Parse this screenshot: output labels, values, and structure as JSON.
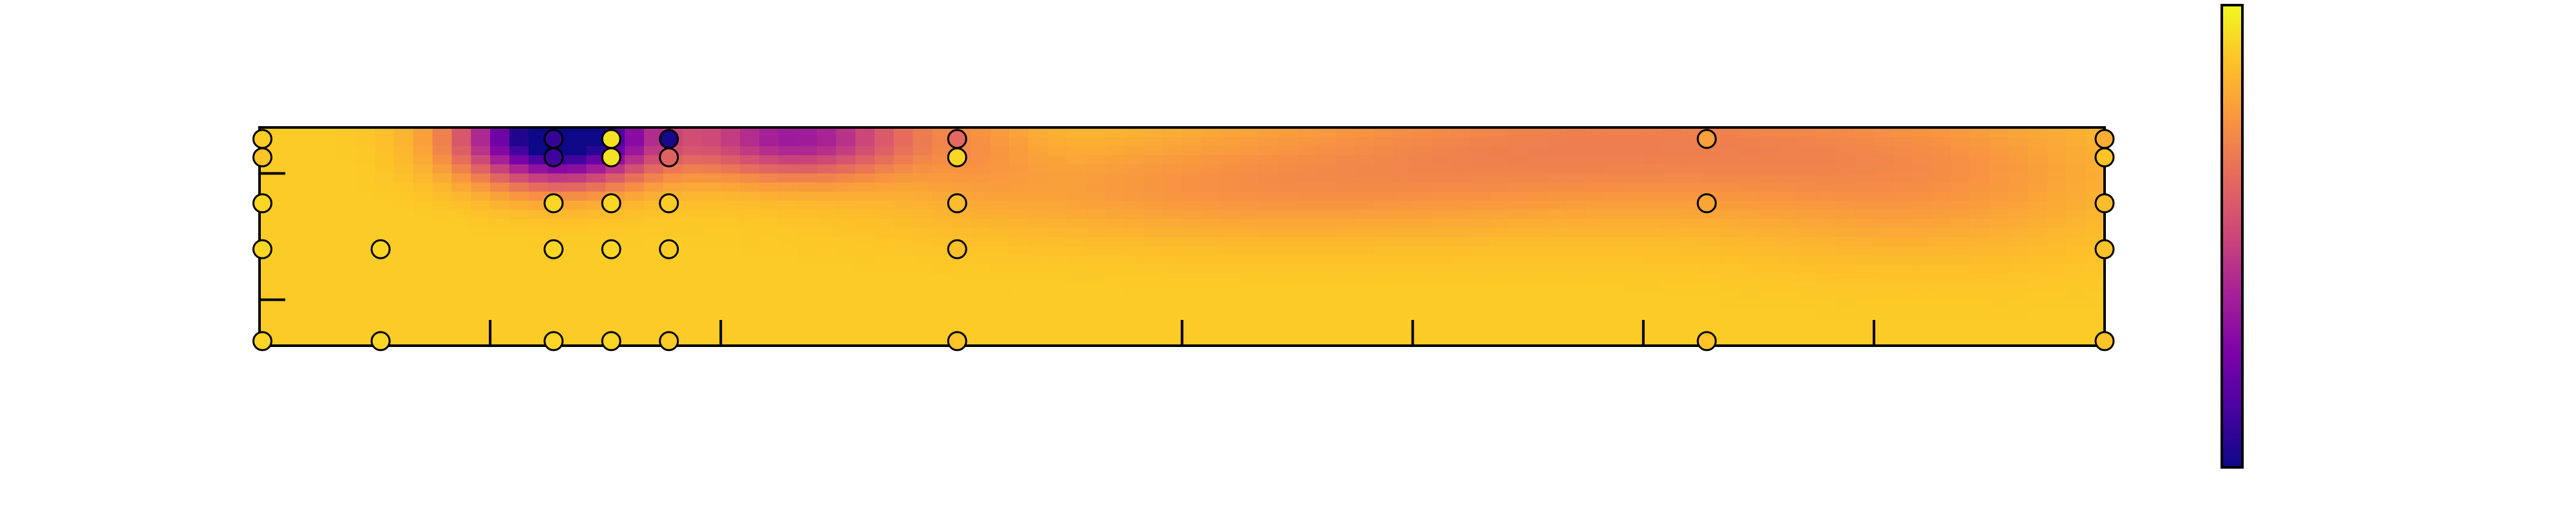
{
  "chart_data": {
    "type": "heatmap",
    "title": "",
    "xlabel": "",
    "ylabel": "",
    "xlim": [
      0,
      32
    ],
    "ylim": [
      -1,
      3.75
    ],
    "x_ticks": [
      0,
      4,
      8,
      16,
      20,
      24,
      28,
      32
    ],
    "y_ticks": [
      0,
      2.75
    ],
    "grid": false,
    "colormap": "plasma",
    "colorbar": {
      "position": "right",
      "range": [
        0,
        1
      ]
    },
    "field_blobs": [
      {
        "x": 5.2,
        "y": 3.55,
        "sx": 1.6,
        "sy": 0.95,
        "amp": -1.05
      },
      {
        "x": 9.3,
        "y": 3.55,
        "sx": 2.0,
        "sy": 0.85,
        "amp": -0.55
      },
      {
        "x": 12.5,
        "y": 3.6,
        "sx": 1.1,
        "sy": 1.3,
        "amp": -0.08
      },
      {
        "x": 23.5,
        "y": 3.5,
        "sx": 6.5,
        "sy": 1.6,
        "amp": -0.2
      },
      {
        "x": 16.5,
        "y": 2.4,
        "sx": 5.5,
        "sy": 1.1,
        "amp": -0.12
      },
      {
        "x": 29.0,
        "y": 2.4,
        "sx": 3.5,
        "sy": 1.5,
        "amp": -0.1
      }
    ],
    "field_base": 0.9,
    "markers": [
      {
        "x": 0.05,
        "y": 3.5,
        "value": 0.9
      },
      {
        "x": 0.05,
        "y": 3.1,
        "value": 0.88
      },
      {
        "x": 0.05,
        "y": 2.1,
        "value": 0.92
      },
      {
        "x": 0.05,
        "y": 1.1,
        "value": 0.92
      },
      {
        "x": 0.05,
        "y": -0.9,
        "value": 0.92
      },
      {
        "x": 2.1,
        "y": 1.1,
        "value": 0.92
      },
      {
        "x": 2.1,
        "y": -0.9,
        "value": 0.92
      },
      {
        "x": 5.1,
        "y": 3.5,
        "value": 0.08
      },
      {
        "x": 5.1,
        "y": 3.1,
        "value": 0.1
      },
      {
        "x": 5.1,
        "y": 2.1,
        "value": 0.92
      },
      {
        "x": 5.1,
        "y": 1.1,
        "value": 0.92
      },
      {
        "x": 5.1,
        "y": -0.9,
        "value": 0.92
      },
      {
        "x": 6.1,
        "y": 3.5,
        "value": 0.95
      },
      {
        "x": 6.1,
        "y": 3.1,
        "value": 0.95
      },
      {
        "x": 6.1,
        "y": 2.1,
        "value": 0.92
      },
      {
        "x": 6.1,
        "y": 1.1,
        "value": 0.92
      },
      {
        "x": 6.1,
        "y": -0.9,
        "value": 0.92
      },
      {
        "x": 7.1,
        "y": 3.5,
        "value": 0.02
      },
      {
        "x": 7.1,
        "y": 3.1,
        "value": 0.6
      },
      {
        "x": 7.1,
        "y": 2.1,
        "value": 0.9
      },
      {
        "x": 7.1,
        "y": 1.1,
        "value": 0.9
      },
      {
        "x": 7.1,
        "y": -0.9,
        "value": 0.9
      },
      {
        "x": 12.1,
        "y": 3.5,
        "value": 0.62
      },
      {
        "x": 12.1,
        "y": 3.1,
        "value": 0.92
      },
      {
        "x": 12.1,
        "y": 2.1,
        "value": 0.86
      },
      {
        "x": 12.1,
        "y": 1.1,
        "value": 0.87
      },
      {
        "x": 12.1,
        "y": -0.9,
        "value": 0.88
      },
      {
        "x": 25.1,
        "y": 3.5,
        "value": 0.78
      },
      {
        "x": 25.1,
        "y": 2.1,
        "value": 0.8
      },
      {
        "x": 25.1,
        "y": -0.9,
        "value": 0.88
      },
      {
        "x": 32.0,
        "y": 3.5,
        "value": 0.82
      },
      {
        "x": 32.0,
        "y": 3.1,
        "value": 0.88
      },
      {
        "x": 32.0,
        "y": 2.1,
        "value": 0.86
      },
      {
        "x": 32.0,
        "y": 1.1,
        "value": 0.88
      },
      {
        "x": 32.0,
        "y": -0.9,
        "value": 0.88
      }
    ]
  }
}
